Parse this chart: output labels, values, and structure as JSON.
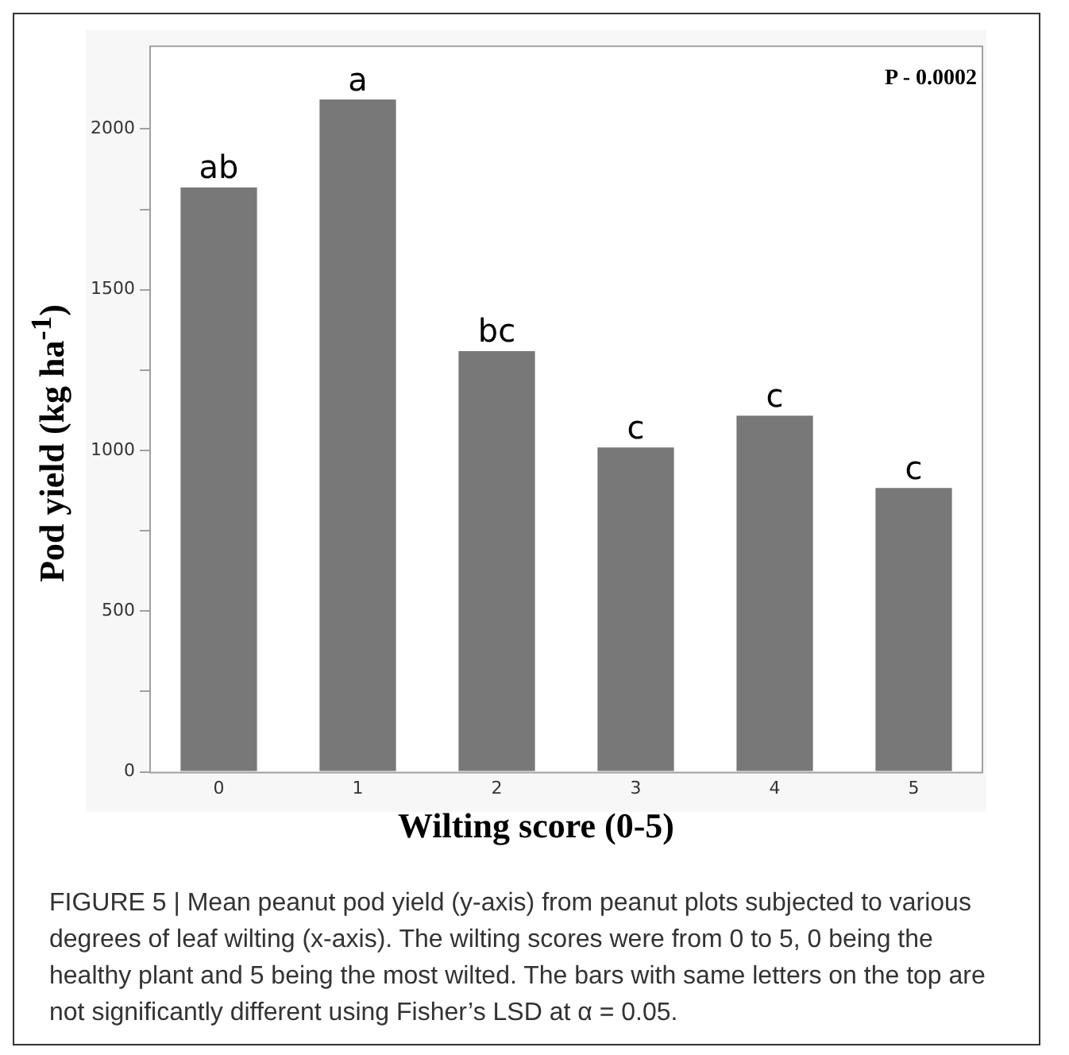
{
  "chart_data": {
    "type": "bar",
    "xlabel": "Wilting score (0-5)",
    "ylabel": "Pod yield (kg ha$^{-1}$)",
    "categories": [
      "0",
      "1",
      "2",
      "3",
      "4",
      "5"
    ],
    "values": [
      1818,
      2092,
      1309,
      1009,
      1108,
      883
    ],
    "color": "#787878",
    "ylim": [
      0,
      2260
    ],
    "yticks": [
      0,
      {
        "value": 250,
        "label": null
      },
      500,
      {
        "value": 750,
        "label": null
      },
      1000,
      {
        "value": 1250,
        "label": null
      },
      1500,
      {
        "value": 1750,
        "label": null
      },
      2000
    ],
    "grid": false,
    "legend": false,
    "annotations": [
      {
        "text": "ab",
        "x": "0",
        "y": 1818
      },
      {
        "text": "a",
        "x": "1",
        "y": 2092
      },
      {
        "text": "bc",
        "x": "2",
        "y": 1309
      },
      {
        "text": "c",
        "x": "3",
        "y": 1009
      },
      {
        "text": "c",
        "x": "4",
        "y": 1108
      },
      {
        "text": "c",
        "x": "5",
        "y": 883
      },
      "P - 0.0002",
      "FIGURE 5 | Mean peanut pod yield (y-axis) from peanut plots subjected to various degrees of leaf wilting (x-axis). The wilting scores were from 0 to 5, 0 being the healthy plant and 5 being the most wilted. The bars with same letters on the top are not significantly different using Fisher’s LSD at α = 0.05."
    ]
  }
}
